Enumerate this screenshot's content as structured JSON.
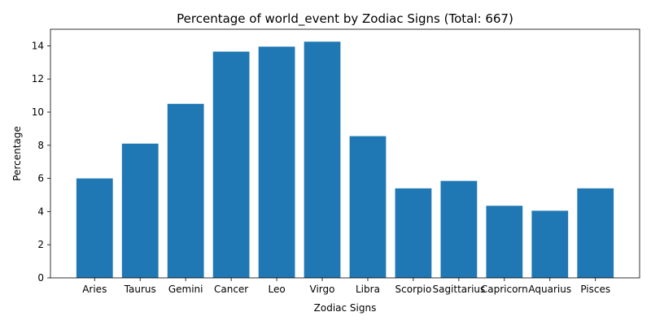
{
  "chart_data": {
    "type": "bar",
    "title": "Percentage of world_event by Zodiac Signs (Total: 667)",
    "xlabel": "Zodiac Signs",
    "ylabel": "Percentage",
    "categories": [
      "Aries",
      "Taurus",
      "Gemini",
      "Cancer",
      "Leo",
      "Virgo",
      "Libra",
      "Scorpio",
      "Sagittarius",
      "Capricorn",
      "Aquarius",
      "Pisces"
    ],
    "values": [
      6.0,
      8.1,
      10.5,
      13.65,
      13.95,
      14.25,
      8.55,
      5.4,
      5.85,
      4.35,
      4.05,
      5.4
    ],
    "ylim": [
      0,
      15
    ],
    "yticks": [
      0,
      2,
      4,
      6,
      8,
      10,
      12,
      14
    ],
    "grid": false,
    "color": "#1f77b4"
  }
}
